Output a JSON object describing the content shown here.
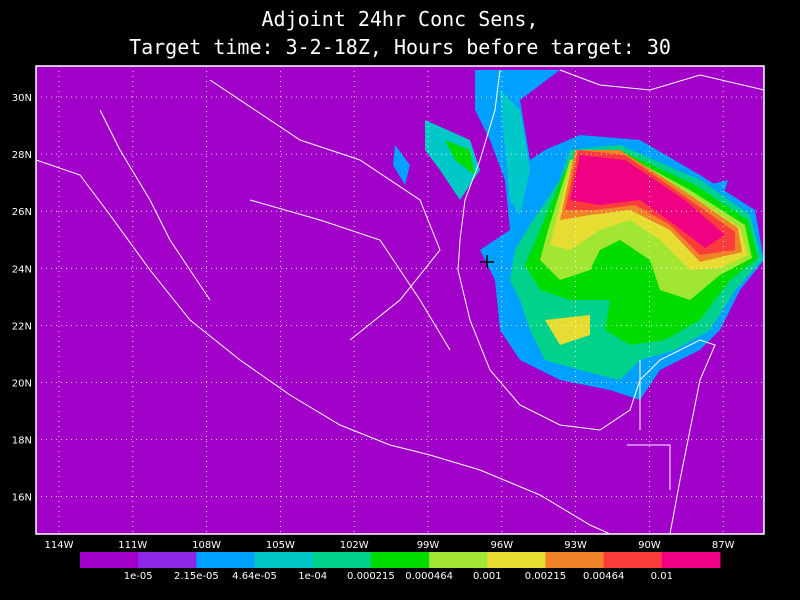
{
  "header": {
    "title": "Adjoint 24hr Conc Sens,",
    "subtitle": "Target time: 3-2-18Z, Hours before target: 30"
  },
  "map": {
    "lon_labels": [
      "114W",
      "111W",
      "108W",
      "105W",
      "102W",
      "99W",
      "96W",
      "93W",
      "90W",
      "87W"
    ],
    "lat_labels": [
      "30N",
      "28N",
      "26N",
      "24N",
      "22N",
      "20N",
      "18N",
      "16N"
    ]
  },
  "colorbar": {
    "labels": [
      "1e-05",
      "2.15e-05",
      "4.64e-05",
      "1e-04",
      "0.000215",
      "0.000464",
      "0.001",
      "0.00215",
      "0.00464",
      "0.01"
    ],
    "colors": [
      "#a000c8",
      "#8c28e6",
      "#00a0ff",
      "#00c8c8",
      "#00d28c",
      "#00dc00",
      "#a0e632",
      "#e6dc32",
      "#f08228",
      "#fa3c3c",
      "#f00082"
    ]
  }
}
